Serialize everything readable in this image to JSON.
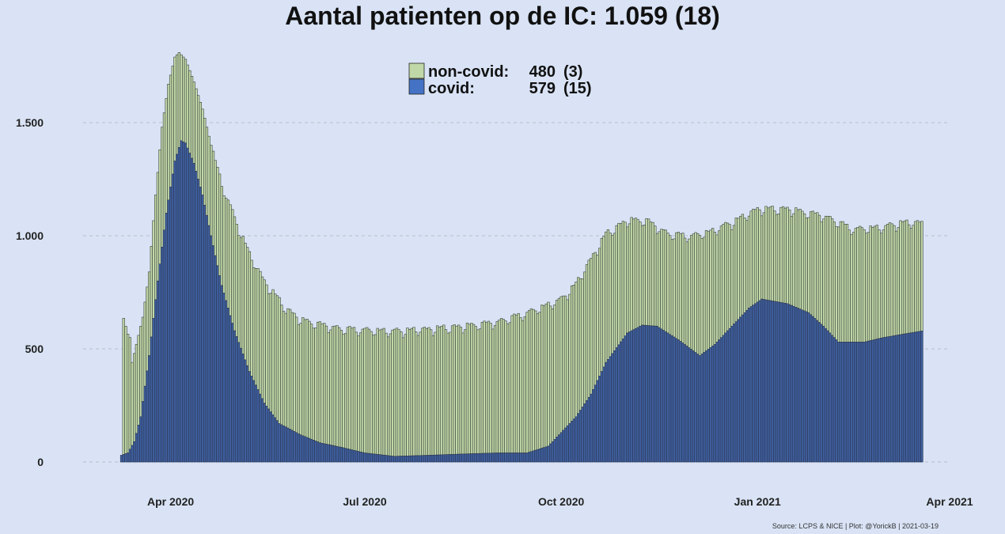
{
  "title": "Aantal patienten op de IC: 1.059  (18)",
  "source": "Source: LCPS & NICE | Plot: @YorickB |  2021-03-19",
  "legend": [
    {
      "name": "non-covid:",
      "value": "480",
      "delta": "(3)",
      "color": "#c0d8a8"
    },
    {
      "name": "covid:",
      "value": "579",
      "delta": "(15)",
      "color": "#4472c4"
    }
  ],
  "colors": {
    "non_covid": "#c0d8a8",
    "covid": "#3e5f9e",
    "bar_outline": "#3a3f3a",
    "grid": "#b9bdc8"
  },
  "chart_data": {
    "type": "bar",
    "stacked": true,
    "x_start": "2020-03-09",
    "x_end": "2021-03-19",
    "xlim": [
      "2020-02-20",
      "2021-04-01"
    ],
    "ylim": [
      0,
      1850
    ],
    "yticks": [
      0,
      500,
      1000,
      1500
    ],
    "ytick_labels": [
      "0",
      "500",
      "1.000",
      "1.500"
    ],
    "xticks": [
      "2020-04-01",
      "2020-07-01",
      "2020-10-01",
      "2021-01-01",
      "2021-04-01"
    ],
    "xtick_labels": [
      "Apr 2020",
      "Jul 2020",
      "Oct 2020",
      "Jan 2021",
      "Apr 2021"
    ],
    "grid": true,
    "legend_position": "top-center",
    "total_keypoints": [
      [
        "2020-03-09",
        30
      ],
      [
        "2020-03-10",
        635
      ],
      [
        "2020-03-11",
        600
      ],
      [
        "2020-03-12",
        565
      ],
      [
        "2020-03-13",
        550
      ],
      [
        "2020-03-14",
        440
      ],
      [
        "2020-03-15",
        480
      ],
      [
        "2020-03-17",
        560
      ],
      [
        "2020-03-19",
        640
      ],
      [
        "2020-03-22",
        840
      ],
      [
        "2020-03-25",
        1180
      ],
      [
        "2020-03-28",
        1480
      ],
      [
        "2020-03-31",
        1670
      ],
      [
        "2020-04-03",
        1790
      ],
      [
        "2020-04-05",
        1810
      ],
      [
        "2020-04-08",
        1780
      ],
      [
        "2020-04-12",
        1680
      ],
      [
        "2020-04-16",
        1560
      ],
      [
        "2020-04-20",
        1400
      ],
      [
        "2020-04-25",
        1230
      ],
      [
        "2020-05-01",
        1080
      ],
      [
        "2020-05-08",
        920
      ],
      [
        "2020-05-15",
        800
      ],
      [
        "2020-05-20",
        740
      ],
      [
        "2020-05-25",
        680
      ],
      [
        "2020-06-01",
        630
      ],
      [
        "2020-06-10",
        610
      ],
      [
        "2020-06-20",
        590
      ],
      [
        "2020-07-01",
        585
      ],
      [
        "2020-07-15",
        580
      ],
      [
        "2020-08-01",
        590
      ],
      [
        "2020-08-15",
        600
      ],
      [
        "2020-09-01",
        620
      ],
      [
        "2020-09-15",
        660
      ],
      [
        "2020-10-01",
        720
      ],
      [
        "2020-10-08",
        790
      ],
      [
        "2020-10-15",
        900
      ],
      [
        "2020-10-22",
        1010
      ],
      [
        "2020-11-01",
        1070
      ],
      [
        "2020-11-10",
        1070
      ],
      [
        "2020-11-20",
        1010
      ],
      [
        "2020-12-01",
        1000
      ],
      [
        "2020-12-10",
        1020
      ],
      [
        "2020-12-20",
        1060
      ],
      [
        "2021-01-01",
        1120
      ],
      [
        "2021-01-15",
        1120
      ],
      [
        "2021-02-01",
        1090
      ],
      [
        "2021-02-15",
        1030
      ],
      [
        "2021-03-01",
        1040
      ],
      [
        "2021-03-10",
        1060
      ],
      [
        "2021-03-19",
        1059
      ]
    ],
    "covid_keypoints": [
      [
        "2020-03-09",
        30
      ],
      [
        "2020-03-12",
        40
      ],
      [
        "2020-03-15",
        90
      ],
      [
        "2020-03-18",
        200
      ],
      [
        "2020-03-22",
        470
      ],
      [
        "2020-03-26",
        800
      ],
      [
        "2020-03-30",
        1100
      ],
      [
        "2020-04-03",
        1330
      ],
      [
        "2020-04-06",
        1420
      ],
      [
        "2020-04-08",
        1410
      ],
      [
        "2020-04-12",
        1320
      ],
      [
        "2020-04-16",
        1180
      ],
      [
        "2020-04-20",
        1000
      ],
      [
        "2020-04-25",
        780
      ],
      [
        "2020-05-01",
        580
      ],
      [
        "2020-05-08",
        400
      ],
      [
        "2020-05-15",
        260
      ],
      [
        "2020-05-22",
        170
      ],
      [
        "2020-06-01",
        120
      ],
      [
        "2020-06-10",
        85
      ],
      [
        "2020-06-20",
        65
      ],
      [
        "2020-07-01",
        40
      ],
      [
        "2020-07-15",
        25
      ],
      [
        "2020-08-01",
        30
      ],
      [
        "2020-08-15",
        35
      ],
      [
        "2020-09-01",
        40
      ],
      [
        "2020-09-15",
        40
      ],
      [
        "2020-09-25",
        70
      ],
      [
        "2020-10-01",
        130
      ],
      [
        "2020-10-08",
        200
      ],
      [
        "2020-10-15",
        300
      ],
      [
        "2020-10-22",
        440
      ],
      [
        "2020-11-01",
        570
      ],
      [
        "2020-11-08",
        605
      ],
      [
        "2020-11-15",
        600
      ],
      [
        "2020-11-25",
        540
      ],
      [
        "2020-12-05",
        470
      ],
      [
        "2020-12-12",
        520
      ],
      [
        "2020-12-20",
        600
      ],
      [
        "2020-12-28",
        680
      ],
      [
        "2021-01-03",
        720
      ],
      [
        "2021-01-15",
        700
      ],
      [
        "2021-01-25",
        660
      ],
      [
        "2021-02-01",
        600
      ],
      [
        "2021-02-08",
        530
      ],
      [
        "2021-02-20",
        530
      ],
      [
        "2021-03-01",
        550
      ],
      [
        "2021-03-19",
        579
      ]
    ]
  }
}
